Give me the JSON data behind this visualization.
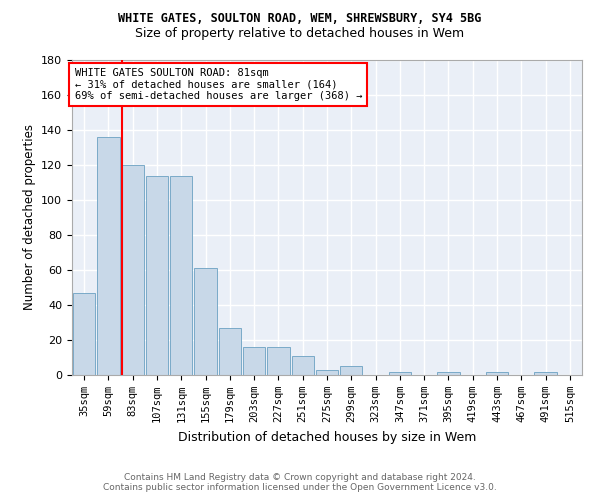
{
  "title1": "WHITE GATES, SOULTON ROAD, WEM, SHREWSBURY, SY4 5BG",
  "title2": "Size of property relative to detached houses in Wem",
  "xlabel": "Distribution of detached houses by size in Wem",
  "ylabel": "Number of detached properties",
  "categories": [
    "35sqm",
    "59sqm",
    "83sqm",
    "107sqm",
    "131sqm",
    "155sqm",
    "179sqm",
    "203sqm",
    "227sqm",
    "251sqm",
    "275sqm",
    "299sqm",
    "323sqm",
    "347sqm",
    "371sqm",
    "395sqm",
    "419sqm",
    "443sqm",
    "467sqm",
    "491sqm",
    "515sqm"
  ],
  "values": [
    47,
    136,
    120,
    114,
    114,
    61,
    27,
    16,
    16,
    11,
    3,
    5,
    0,
    2,
    0,
    2,
    0,
    2,
    0,
    2,
    0
  ],
  "bar_color": "#c8d8e8",
  "bar_edge_color": "#7aaac8",
  "red_line_index": 2,
  "annotation_text": "WHITE GATES SOULTON ROAD: 81sqm\n← 31% of detached houses are smaller (164)\n69% of semi-detached houses are larger (368) →",
  "annotation_box_color": "white",
  "annotation_box_edge": "red",
  "ylim": [
    0,
    180
  ],
  "yticks": [
    0,
    20,
    40,
    60,
    80,
    100,
    120,
    140,
    160,
    180
  ],
  "footer": "Contains HM Land Registry data © Crown copyright and database right 2024.\nContains public sector information licensed under the Open Government Licence v3.0.",
  "bg_color": "#eaeff7",
  "grid_color": "white",
  "fig_width": 6.0,
  "fig_height": 5.0,
  "title1_fontsize": 8.5,
  "title2_fontsize": 9.0,
  "xlabel_fontsize": 9.0,
  "ylabel_fontsize": 8.5,
  "tick_fontsize": 7.5,
  "annotation_fontsize": 7.5,
  "footer_fontsize": 6.5,
  "footer_color": "#666666"
}
